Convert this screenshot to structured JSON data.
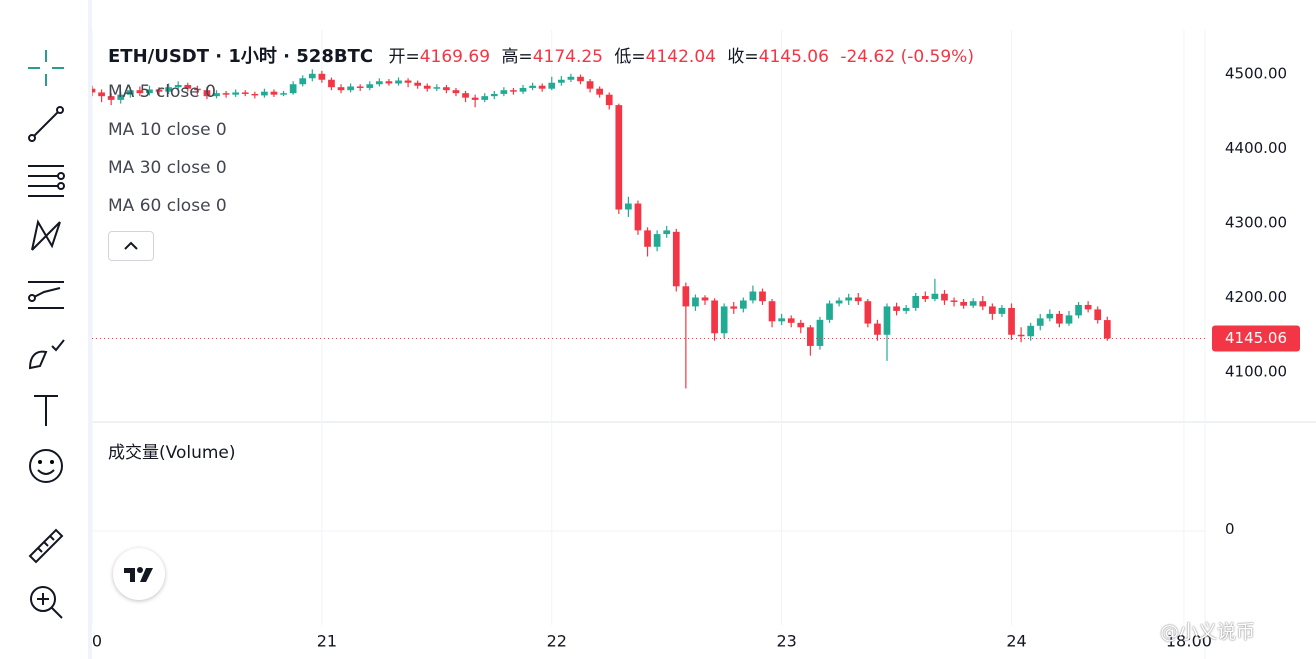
{
  "header": {
    "symbol": "ETH/USDT · 1小时 · 528BTC",
    "open_label": "开=",
    "high_label": "高=",
    "low_label": "低=",
    "close_label": "收=",
    "change": -24.62,
    "change_percent": {
      "value": -0.59,
      "label": "(-0.59%)"
    }
  },
  "indicators": [
    "MA 5 close 0",
    "MA 10 close 0",
    "MA 30 close 0",
    "MA 60 close 0"
  ],
  "volume_pane": {
    "title": "成交量(Volume)",
    "yticks": [
      0
    ]
  },
  "watermark": "@小义说币",
  "chart_data": {
    "type": "candlestick",
    "up_color": "#22ab94",
    "down_color": "#f23645",
    "grid": true,
    "x": [
      0,
      1,
      2,
      3,
      4,
      5,
      6,
      7,
      8,
      9,
      10,
      11,
      12,
      13,
      14,
      15,
      16,
      17,
      18,
      19,
      20,
      21,
      22,
      23,
      24,
      25,
      26,
      27,
      28,
      29,
      30,
      31,
      32,
      33,
      34,
      35,
      36,
      37,
      38,
      39,
      40,
      41,
      42,
      43,
      44,
      45,
      46,
      47,
      48,
      49,
      50,
      51,
      52,
      53,
      54,
      55,
      56,
      57,
      58,
      59,
      60,
      61,
      62,
      63,
      64,
      65,
      66,
      67,
      68,
      69,
      70,
      71,
      72,
      73,
      74,
      75,
      76,
      77,
      78,
      79,
      80,
      81,
      82,
      83,
      84,
      85,
      86,
      87,
      88,
      89,
      90,
      91,
      92,
      93,
      94,
      95,
      96,
      97,
      98,
      99,
      100,
      101,
      102,
      103,
      104,
      105,
      106
    ],
    "open": [
      4480,
      4475,
      4470,
      4465,
      4472,
      4478,
      4474,
      4479,
      4476,
      4482,
      4485,
      4480,
      4478,
      4470,
      4474,
      4472,
      4475,
      4473,
      4471,
      4476,
      4472,
      4474,
      4486,
      4494,
      4500,
      4492,
      4482,
      4478,
      4483,
      4481,
      4486,
      4490,
      4487,
      4491,
      4488,
      4484,
      4480,
      4482,
      4478,
      4474,
      4468,
      4465,
      4470,
      4473,
      4478,
      4476,
      4481,
      4484,
      4480,
      4488,
      4492,
      4496,
      4490,
      4480,
      4472,
      4458,
      4318,
      4326,
      4290,
      4268,
      4285,
      4288,
      4215,
      4188,
      4200,
      4196,
      4152,
      4188,
      4185,
      4196,
      4208,
      4195,
      4168,
      4172,
      4166,
      4160,
      4135,
      4170,
      4192,
      4196,
      4200,
      4195,
      4165,
      4150,
      4188,
      4182,
      4186,
      4202,
      4198,
      4205,
      4196,
      4194,
      4189,
      4195,
      4188,
      4178,
      4186,
      4150,
      4148,
      4162,
      4172,
      4178,
      4165,
      4176,
      4190,
      4184,
      4169.69
    ],
    "high": [
      4484,
      4479,
      4474,
      4476,
      4482,
      4483,
      4484,
      4482,
      4487,
      4490,
      4488,
      4484,
      4482,
      4478,
      4477,
      4479,
      4478,
      4476,
      4480,
      4479,
      4477,
      4490,
      4498,
      4506,
      4504,
      4495,
      4486,
      4487,
      4486,
      4490,
      4494,
      4493,
      4495,
      4494,
      4491,
      4487,
      4486,
      4485,
      4481,
      4477,
      4472,
      4474,
      4477,
      4482,
      4481,
      4485,
      4488,
      4487,
      4496,
      4497,
      4500,
      4499,
      4493,
      4483,
      4475,
      4460,
      4335,
      4330,
      4294,
      4290,
      4296,
      4292,
      4220,
      4204,
      4203,
      4199,
      4192,
      4194,
      4200,
      4216,
      4212,
      4198,
      4178,
      4176,
      4170,
      4163,
      4174,
      4196,
      4200,
      4205,
      4206,
      4198,
      4170,
      4192,
      4193,
      4190,
      4206,
      4208,
      4225,
      4210,
      4200,
      4198,
      4199,
      4202,
      4192,
      4190,
      4192,
      4160,
      4166,
      4178,
      4184,
      4182,
      4182,
      4194,
      4195,
      4188,
      4174.25
    ],
    "low": [
      4470,
      4462,
      4458,
      4460,
      4468,
      4470,
      4471,
      4472,
      4473,
      4478,
      4476,
      4472,
      4466,
      4467,
      4468,
      4469,
      4470,
      4467,
      4468,
      4469,
      4470,
      4472,
      4483,
      4490,
      4488,
      4478,
      4474,
      4475,
      4477,
      4478,
      4483,
      4484,
      4484,
      4482,
      4480,
      4476,
      4477,
      4474,
      4470,
      4462,
      4455,
      4462,
      4466,
      4470,
      4472,
      4473,
      4478,
      4476,
      4478,
      4484,
      4489,
      4486,
      4475,
      4468,
      4452,
      4312,
      4308,
      4284,
      4255,
      4262,
      4280,
      4208,
      4078,
      4182,
      4190,
      4142,
      4145,
      4178,
      4180,
      4192,
      4190,
      4160,
      4163,
      4160,
      4152,
      4122,
      4130,
      4166,
      4188,
      4190,
      4190,
      4160,
      4142,
      4115,
      4176,
      4178,
      4182,
      4194,
      4195,
      4190,
      4188,
      4185,
      4186,
      4183,
      4170,
      4174,
      4143,
      4140,
      4142,
      4156,
      4168,
      4160,
      4162,
      4172,
      4180,
      4165,
      4142.04
    ],
    "close": [
      4475,
      4470,
      4465,
      4472,
      4478,
      4474,
      4479,
      4476,
      4482,
      4485,
      4480,
      4478,
      4470,
      4474,
      4472,
      4475,
      4473,
      4471,
      4476,
      4472,
      4474,
      4486,
      4494,
      4500,
      4492,
      4482,
      4478,
      4483,
      4481,
      4486,
      4490,
      4487,
      4491,
      4488,
      4484,
      4480,
      4482,
      4478,
      4474,
      4468,
      4465,
      4470,
      4473,
      4478,
      4476,
      4481,
      4484,
      4480,
      4488,
      4492,
      4496,
      4490,
      4480,
      4472,
      4458,
      4318,
      4326,
      4290,
      4268,
      4285,
      4290,
      4215,
      4188,
      4200,
      4196,
      4152,
      4188,
      4185,
      4196,
      4208,
      4195,
      4168,
      4172,
      4166,
      4160,
      4135,
      4170,
      4192,
      4196,
      4200,
      4195,
      4165,
      4150,
      4188,
      4182,
      4186,
      4202,
      4198,
      4205,
      4196,
      4194,
      4189,
      4195,
      4188,
      4178,
      4186,
      4150,
      4148,
      4162,
      4172,
      4178,
      4165,
      4176,
      4190,
      4184,
      4169.69,
      4145.06
    ],
    "xlim": [
      0,
      116.2
    ],
    "xticks": [
      {
        "value": 0,
        "label": "0"
      },
      {
        "value": 24,
        "label": "21"
      },
      {
        "value": 48,
        "label": "22"
      },
      {
        "value": 72,
        "label": "23"
      },
      {
        "value": 96,
        "label": "24"
      },
      {
        "value": 114,
        "label": "18:00"
      }
    ],
    "ylim": [
      4033,
      4548
    ],
    "yticks": [
      {
        "value": 4100,
        "label": "4100.00"
      },
      {
        "value": 4200,
        "label": "4200.00"
      },
      {
        "value": 4300,
        "label": "4300.00"
      },
      {
        "value": 4400,
        "label": "4400.00"
      },
      {
        "value": 4500,
        "label": "4500.00"
      }
    ]
  }
}
